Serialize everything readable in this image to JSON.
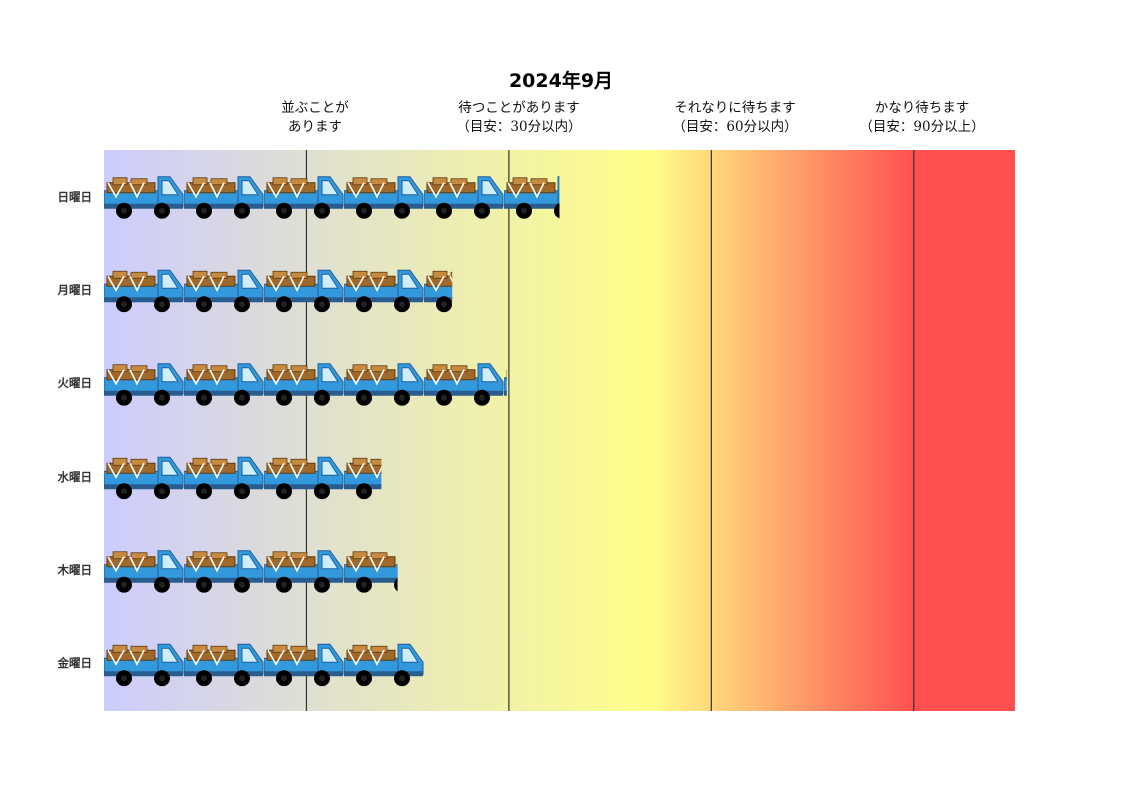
{
  "chart_data": {
    "type": "bar",
    "title": "2024年9月",
    "orientation": "horizontal",
    "xlabel": "",
    "ylabel": "",
    "xlim": [
      0,
      4.5
    ],
    "categories": [
      "日曜日",
      "月曜日",
      "火曜日",
      "水曜日",
      "木曜日",
      "金曜日"
    ],
    "series": [
      {
        "values": [
          2.25,
          1.72,
          1.99,
          1.37,
          1.45,
          1.58
        ]
      }
    ],
    "levels": [
      {
        "value": 1,
        "line1": "並ぶことが",
        "line2": "あります"
      },
      {
        "value": 2,
        "line1": "待つことがあります",
        "line2": "（目安：30分以内）"
      },
      {
        "value": 3,
        "line1": "それなりに待ちます",
        "line2": "（目安：60分以内）"
      },
      {
        "value": 4,
        "line1": "かなり待ちます",
        "line2": "（目安：90分以上）"
      }
    ],
    "background_gradient": [
      "#ccccff",
      "#ffff88",
      "#ff5050"
    ],
    "bar_icon": "truck-icon",
    "grid": false,
    "legend": "none"
  }
}
